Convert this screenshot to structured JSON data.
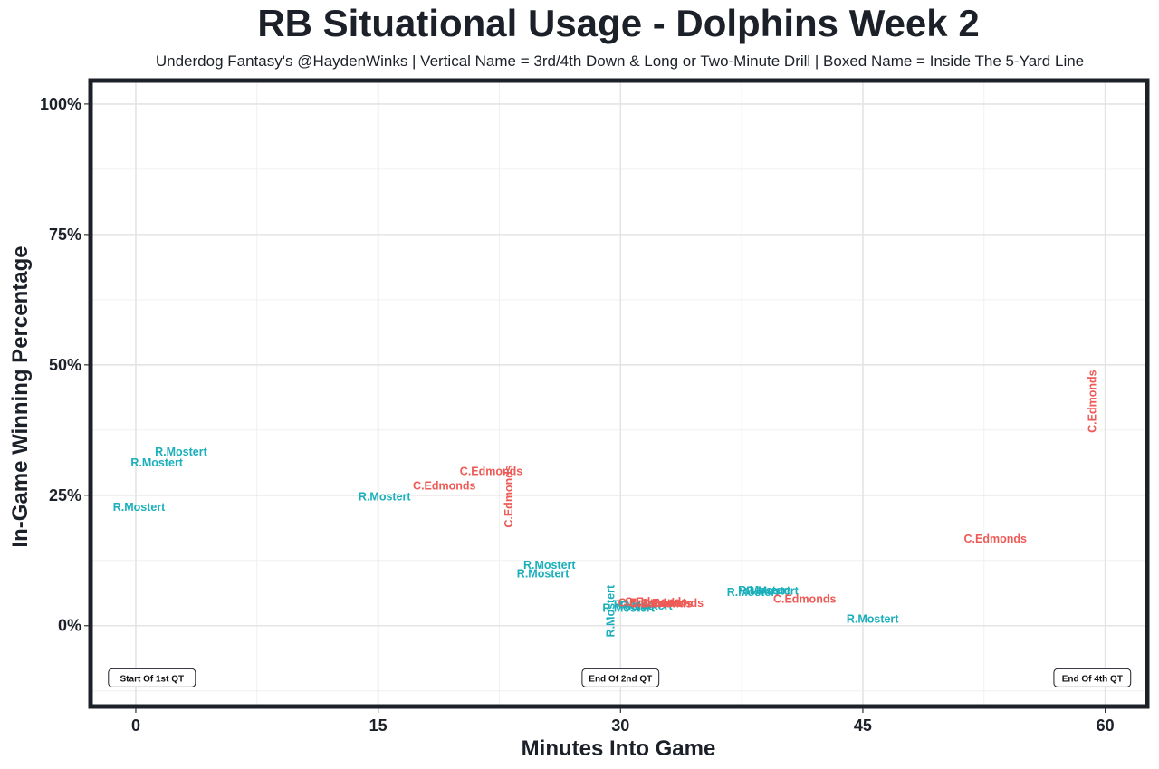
{
  "chart_data": {
    "type": "scatter",
    "title": "RB Situational Usage - Dolphins Week 2",
    "subtitle": "Underdog Fantasy's @HaydenWinks | Vertical Name = 3rd/4th Down & Long or Two-Minute Drill | Boxed Name = Inside The 5-Yard Line",
    "xlabel": "Minutes Into Game",
    "ylabel": "In-Game Winning Percentage",
    "x_ticks": [
      {
        "v": 0,
        "label": "0"
      },
      {
        "v": 15,
        "label": "15"
      },
      {
        "v": 30,
        "label": "30"
      },
      {
        "v": 45,
        "label": "45"
      },
      {
        "v": 60,
        "label": "60"
      }
    ],
    "y_ticks": [
      {
        "v": 0,
        "label": "0%"
      },
      {
        "v": 25,
        "label": "25%"
      },
      {
        "v": 50,
        "label": "50%"
      },
      {
        "v": 75,
        "label": "75%"
      },
      {
        "v": 100,
        "label": "100%"
      }
    ],
    "xlim": [
      -2.8,
      62.6
    ],
    "ylim": [
      -15.5,
      104.5
    ],
    "grid": true,
    "quarter_markers": [
      {
        "x": 1,
        "y": -10,
        "label": "Start Of 1st QT"
      },
      {
        "x": 30,
        "y": -10,
        "label": "End Of 2nd QT"
      },
      {
        "x": 59.2,
        "y": -10,
        "label": "End Of 4th QT"
      }
    ],
    "series": [
      {
        "player": "R.Mostert",
        "color": "#1aafbb",
        "points": [
          {
            "x": 0.2,
            "y": 22.7,
            "label": "R.Mostert",
            "vertical": false
          },
          {
            "x": 1.3,
            "y": 31.2,
            "label": "R.Mostert",
            "vertical": false
          },
          {
            "x": 2.8,
            "y": 33.3,
            "label": "R.Mostert",
            "vertical": false
          },
          {
            "x": 15.4,
            "y": 24.7,
            "label": "R.Mostert",
            "vertical": false
          },
          {
            "x": 25.6,
            "y": 11.6,
            "label": "R.Mostert",
            "vertical": false
          },
          {
            "x": 25.2,
            "y": 9.9,
            "label": "R.Mostert",
            "vertical": false
          },
          {
            "x": 29.4,
            "y": 2.8,
            "label": "R.Mostert",
            "vertical": true
          },
          {
            "x": 30.5,
            "y": 3.3,
            "label": "R.Mostert",
            "vertical": false
          },
          {
            "x": 31.2,
            "y": 4.0,
            "label": "R.Mostert",
            "vertical": false
          },
          {
            "x": 31.6,
            "y": 3.8,
            "label": "R.Mostert",
            "vertical": false
          },
          {
            "x": 38.2,
            "y": 6.4,
            "label": "R.Mostert",
            "vertical": false
          },
          {
            "x": 38.9,
            "y": 6.7,
            "label": "R.Mostert",
            "vertical": false
          },
          {
            "x": 39.4,
            "y": 6.6,
            "label": "R.Mostert",
            "vertical": false
          },
          {
            "x": 45.6,
            "y": 1.3,
            "label": "R.Mostert",
            "vertical": false
          }
        ]
      },
      {
        "player": "C.Edmonds",
        "color": "#ee5a55",
        "points": [
          {
            "x": 19.1,
            "y": 26.8,
            "label": "C.Edmonds",
            "vertical": false
          },
          {
            "x": 22.0,
            "y": 29.6,
            "label": "C.Edmonds",
            "vertical": false
          },
          {
            "x": 23.1,
            "y": 24.8,
            "label": "C.Edmonds",
            "vertical": true
          },
          {
            "x": 31.8,
            "y": 4.4,
            "label": "C.Edmonds",
            "vertical": false
          },
          {
            "x": 32.2,
            "y": 4.6,
            "label": "C.Edmonds",
            "vertical": false
          },
          {
            "x": 32.5,
            "y": 4.2,
            "label": "C.Edmonds",
            "vertical": false
          },
          {
            "x": 33.2,
            "y": 4.3,
            "label": "C.Edmonds",
            "vertical": false
          },
          {
            "x": 41.4,
            "y": 5.1,
            "label": "C.Edmonds",
            "vertical": false
          },
          {
            "x": 53.2,
            "y": 16.6,
            "label": "C.Edmonds",
            "vertical": false
          },
          {
            "x": 59.2,
            "y": 43.0,
            "label": "C.Edmonds",
            "vertical": true
          }
        ]
      }
    ]
  }
}
